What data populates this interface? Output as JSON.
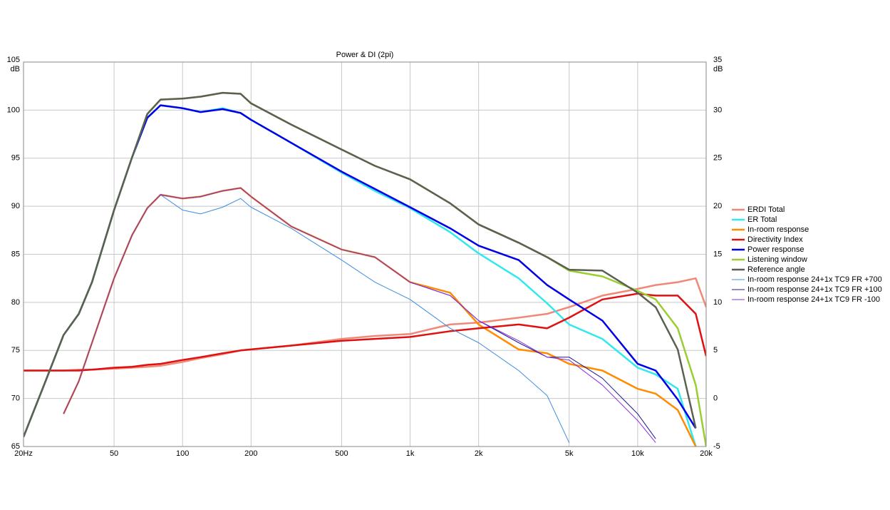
{
  "chart_data": {
    "type": "line",
    "title": "Power & DI (2pi)",
    "y_label": "dB",
    "y2_label": "dB",
    "log_x": true,
    "grid": true,
    "legend": "right",
    "x": [
      20,
      25,
      30,
      35,
      40,
      50,
      60,
      70,
      80,
      100,
      120,
      150,
      180,
      200,
      300,
      500,
      700,
      1000,
      1500,
      2000,
      3000,
      4000,
      5000,
      7000,
      10000,
      12000,
      15000,
      18000,
      20000
    ],
    "xlim": [
      20,
      20000
    ],
    "xticks": [
      {
        "value": 20,
        "label": "20Hz"
      },
      50,
      100,
      200,
      500,
      {
        "value": 1000,
        "label": "1k"
      },
      {
        "value": 2000,
        "label": "2k"
      },
      {
        "value": 5000,
        "label": "5k"
      },
      {
        "value": 10000,
        "label": "10k"
      },
      {
        "value": 20000,
        "label": "20k"
      }
    ],
    "ylim": [
      65,
      105
    ],
    "yticks": [
      65,
      70,
      75,
      80,
      85,
      90,
      95,
      100,
      105
    ],
    "y2lim": [
      -5,
      35
    ],
    "y2ticks": [
      -5,
      0,
      5,
      10,
      15,
      20,
      25,
      30,
      35
    ],
    "series": [
      {
        "name": "ERDI Total",
        "color": "#f08878",
        "axis": "y2",
        "width": 2.5,
        "values": [
          2.9,
          2.9,
          2.9,
          3.0,
          3.0,
          3.1,
          3.2,
          3.3,
          3.4,
          3.8,
          4.2,
          4.6,
          5.0,
          5.1,
          5.5,
          6.2,
          6.5,
          6.7,
          7.7,
          7.9,
          8.4,
          8.8,
          9.5,
          10.7,
          11.4,
          11.8,
          12.1,
          12.5,
          9.5
        ]
      },
      {
        "name": "ER Total",
        "color": "#30e8f0",
        "width": 2.5,
        "values": [
          66,
          71.8,
          76.6,
          78.8,
          82.1,
          89.6,
          95.1,
          99.2,
          100.5,
          100.2,
          99.8,
          100.2,
          99.7,
          99.0,
          96.6,
          93.5,
          91.6,
          89.8,
          87.3,
          85.1,
          82.5,
          79.9,
          77.7,
          76.2,
          73.2,
          72.5,
          71.0,
          65,
          null
        ]
      },
      {
        "name": "In-room response",
        "color": "#ff8c00",
        "width": 2.5,
        "values": [
          null,
          null,
          68.4,
          71.8,
          75.8,
          82.5,
          87.0,
          89.8,
          91.2,
          90.8,
          91.0,
          91.6,
          91.9,
          91.0,
          87.9,
          85.5,
          84.7,
          82.1,
          81.0,
          77.7,
          75.1,
          74.7,
          73.6,
          72.9,
          71.0,
          70.5,
          68.8,
          65,
          null
        ]
      },
      {
        "name": "Directivity Index",
        "color": "#e01010",
        "axis": "y2",
        "width": 2.5,
        "values": [
          2.9,
          2.9,
          2.9,
          2.9,
          3.0,
          3.2,
          3.3,
          3.5,
          3.6,
          4.0,
          4.3,
          4.7,
          5.0,
          5.1,
          5.5,
          6.0,
          6.2,
          6.4,
          7.0,
          7.3,
          7.7,
          7.3,
          8.4,
          10.3,
          10.9,
          10.7,
          10.7,
          8.8,
          4.4
        ]
      },
      {
        "name": "Power response",
        "color": "#0000e8",
        "width": 2.5,
        "values": [
          66,
          71.8,
          76.6,
          78.8,
          82.1,
          89.6,
          95.1,
          99.2,
          100.5,
          100.2,
          99.8,
          100.1,
          99.7,
          99.0,
          96.6,
          93.6,
          91.8,
          89.9,
          87.7,
          85.9,
          84.4,
          81.8,
          80.3,
          78.1,
          73.6,
          72.9,
          69.9,
          66.9,
          null
        ]
      },
      {
        "name": "Listening window",
        "color": "#9acd32",
        "width": 2.5,
        "values": [
          66,
          71.8,
          76.6,
          78.8,
          82.1,
          89.6,
          95.1,
          99.6,
          101.1,
          101.2,
          101.4,
          101.8,
          101.7,
          100.7,
          98.5,
          95.9,
          94.2,
          92.8,
          90.3,
          88.1,
          86.2,
          84.7,
          83.3,
          82.7,
          81.2,
          80.3,
          77.3,
          71.4,
          65
        ]
      },
      {
        "name": "Reference angle",
        "color": "#5a6052",
        "width": 2.5,
        "values": [
          66,
          71.8,
          76.6,
          78.8,
          82.1,
          89.6,
          95.1,
          99.6,
          101.1,
          101.2,
          101.4,
          101.8,
          101.7,
          100.7,
          98.5,
          95.9,
          94.2,
          92.8,
          90.3,
          88.1,
          86.2,
          84.7,
          83.4,
          83.3,
          81.0,
          79.5,
          75.1,
          66.9,
          null
        ]
      },
      {
        "name": "In-room response 24+1x TC9 FR +700",
        "color": "#3c8de0",
        "width": 1,
        "values": [
          null,
          null,
          68.4,
          71.8,
          75.8,
          82.5,
          87.0,
          89.8,
          91.2,
          89.6,
          89.2,
          89.9,
          90.8,
          89.9,
          87.7,
          84.4,
          82.1,
          80.3,
          77.3,
          75.8,
          72.9,
          70.3,
          65.4,
          null,
          null,
          null,
          null,
          null,
          null
        ]
      },
      {
        "name": "In-room response 24+1x TC9 FR +100",
        "color": "#1a1a8c",
        "width": 1,
        "values": [
          null,
          null,
          68.4,
          71.8,
          75.8,
          82.5,
          87.0,
          89.8,
          91.2,
          90.8,
          91.0,
          91.6,
          91.9,
          91.0,
          87.9,
          85.5,
          84.7,
          82.1,
          80.7,
          78.1,
          75.8,
          74.3,
          74.3,
          72.1,
          68.4,
          65.8,
          null,
          null,
          null
        ]
      },
      {
        "name": "In-room response 24+1x TC9 FR -100",
        "color": "#8a2be2",
        "width": 1,
        "values": [
          null,
          null,
          68.4,
          71.8,
          75.8,
          82.5,
          87.0,
          89.8,
          91.2,
          90.8,
          91.0,
          91.6,
          91.9,
          91.0,
          87.9,
          85.5,
          84.7,
          82.1,
          80.7,
          78.1,
          76.0,
          74.3,
          74.0,
          71.4,
          67.7,
          65.4,
          null,
          null,
          null
        ]
      }
    ]
  }
}
